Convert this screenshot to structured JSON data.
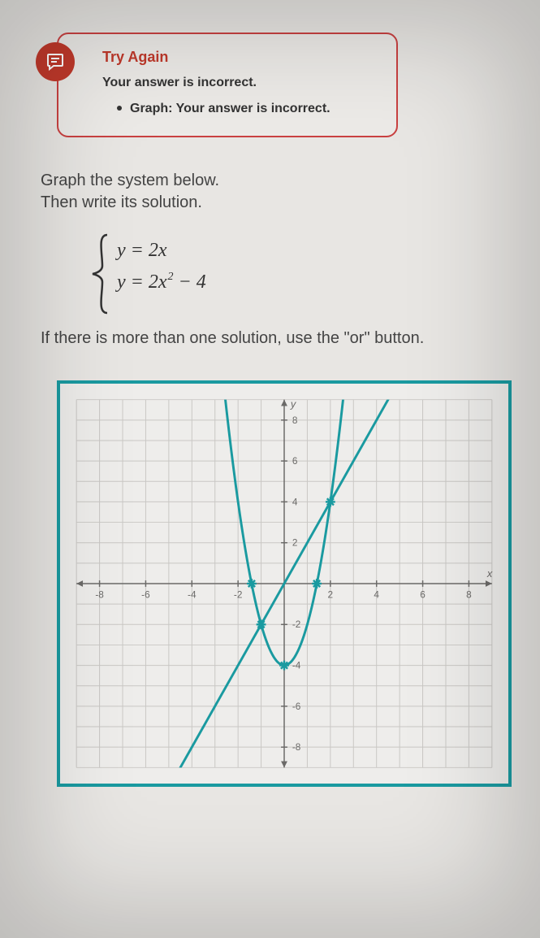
{
  "feedback": {
    "title": "Try Again",
    "subtitle": "Your answer is incorrect.",
    "bullet_label": "Graph:",
    "bullet_text": "Your answer is incorrect.",
    "border_color": "#c94141",
    "icon_bg": "#c0392b",
    "title_color": "#c0392b"
  },
  "prompt": {
    "line1": "Graph the system below.",
    "line2": "Then write its solution."
  },
  "equations": {
    "eq1_lhs": "y",
    "eq1_rhs": "2x",
    "eq2_lhs": "y",
    "eq2_rhs_base": "2x",
    "eq2_rhs_exp": "2",
    "eq2_rhs_tail": " − 4"
  },
  "instruction": "If there is more than one solution, use the \"or\" button.",
  "chart": {
    "type": "line_and_parabola",
    "border_color": "#1a9aa0",
    "background_color": "#eeedeb",
    "grid_color": "#c9c7c4",
    "axis_color": "#6b6a68",
    "tick_label_color": "#6b6a68",
    "tick_fontsize": 12,
    "xlim": [
      -9,
      9
    ],
    "ylim": [
      -9,
      9
    ],
    "tick_step": 2,
    "x_ticks": [
      -8,
      -6,
      -4,
      -2,
      2,
      4,
      6,
      8
    ],
    "y_ticks": [
      -8,
      -6,
      -4,
      -2,
      2,
      4,
      6,
      8
    ],
    "x_axis_label": "x",
    "y_axis_label": "y",
    "series": [
      {
        "name": "line",
        "equation": "y = 2x",
        "color": "#1a9aa0",
        "line_width": 3,
        "points": [
          [
            -6,
            -12
          ],
          [
            6,
            12
          ]
        ]
      },
      {
        "name": "parabola",
        "equation": "y = 2x^2 - 4",
        "color": "#1a9aa0",
        "line_width": 3,
        "vertex": [
          0,
          -4
        ],
        "points": [
          [
            -2.6,
            9.52
          ],
          [
            -2,
            4
          ],
          [
            -1.41,
            0
          ],
          [
            -1,
            -2
          ],
          [
            0,
            -4
          ],
          [
            1,
            -2
          ],
          [
            1.41,
            0
          ],
          [
            2,
            4
          ],
          [
            2.6,
            9.52
          ]
        ]
      }
    ],
    "markers": [
      {
        "x": -1,
        "y": -2,
        "style": "star",
        "color": "#1a9aa0"
      },
      {
        "x": -1.41,
        "y": 0,
        "style": "star",
        "color": "#1a9aa0"
      },
      {
        "x": 1.41,
        "y": 0,
        "style": "star",
        "color": "#1a9aa0"
      },
      {
        "x": 0,
        "y": -4,
        "style": "star",
        "color": "#1a9aa0"
      },
      {
        "x": 2,
        "y": 4,
        "style": "star",
        "color": "#1a9aa0"
      }
    ]
  }
}
